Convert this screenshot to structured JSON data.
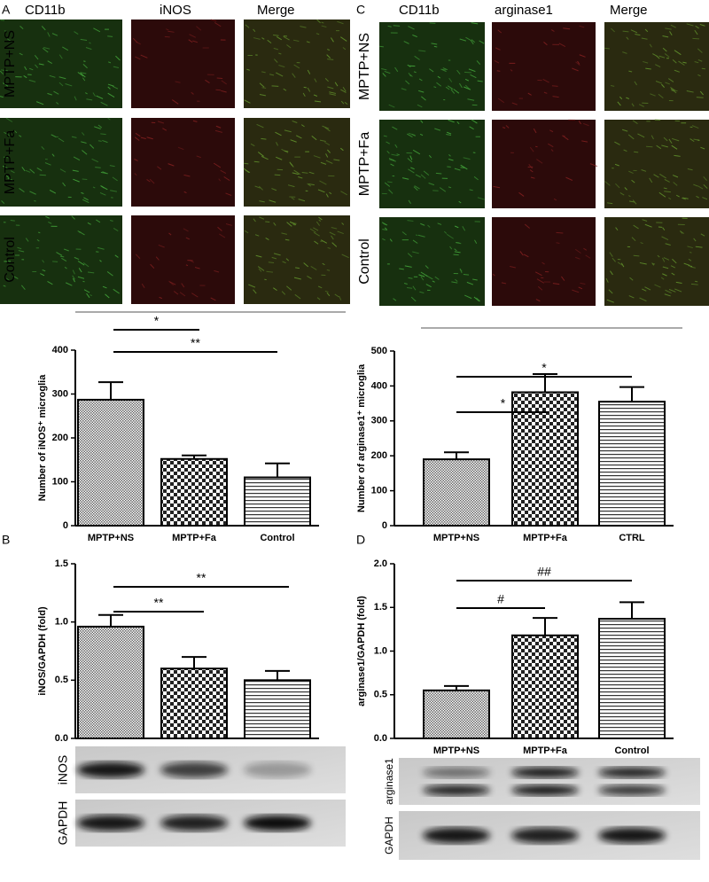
{
  "panel_labels": [
    "A",
    "B",
    "C",
    "D"
  ],
  "micrographs": [
    {
      "columns": [
        "CD11b",
        "iNOS",
        "Merge"
      ],
      "rows": [
        "MPTP+NS",
        "MPTP+Fa",
        "Control"
      ]
    },
    {
      "columns": [
        "CD11b",
        "arginase1",
        "Merge"
      ],
      "rows": [
        "MPTP+NS",
        "MPTP+Fa",
        "Control"
      ]
    }
  ],
  "blots": [
    {
      "labels": [
        "iNOS",
        "GAPDH"
      ]
    },
    {
      "labels": [
        "arginase1",
        "GAPDH"
      ]
    }
  ],
  "chart_data": [
    {
      "type": "bar",
      "y_label": "Number of iNOS⁺ microglia",
      "categories": [
        "MPTP+NS",
        "MPTP+Fa",
        "Control"
      ],
      "values": [
        287,
        152,
        110
      ],
      "errors": [
        40,
        8,
        32
      ],
      "ylim": [
        0,
        400
      ],
      "yticks": [
        0,
        100,
        200,
        300,
        400
      ],
      "annotations": [
        "*",
        "**"
      ]
    },
    {
      "type": "bar",
      "y_label": "iNOS/GAPDH (fold)",
      "categories": [
        "MPTP+NS",
        "MPTP+Fa",
        "Control"
      ],
      "values": [
        0.96,
        0.6,
        0.5
      ],
      "errors": [
        0.1,
        0.1,
        0.08
      ],
      "ylim": [
        0,
        1.5
      ],
      "yticks": [
        {
          "value": 0,
          "label": "0.0"
        },
        0.5,
        {
          "value": 1,
          "label": "1.0"
        },
        1.5
      ],
      "annotations": [
        "**",
        "**"
      ]
    },
    {
      "type": "bar",
      "y_label": "Number of arginase1⁺ microglia",
      "categories": [
        "MPTP+NS",
        "MPTP+Fa",
        "CTRL"
      ],
      "values": [
        190,
        382,
        355
      ],
      "errors": [
        20,
        52,
        42
      ],
      "ylim": [
        0,
        500
      ],
      "yticks": [
        0,
        100,
        200,
        300,
        400,
        500
      ],
      "annotations": [
        "*",
        "*"
      ]
    },
    {
      "type": "bar",
      "y_label": "arginase1/GAPDH (fold)",
      "categories": [
        "MPTP+NS",
        "MPTP+Fa",
        "Control"
      ],
      "values": [
        0.55,
        1.18,
        1.37
      ],
      "errors": [
        0.05,
        0.2,
        0.19
      ],
      "ylim": [
        0,
        2
      ],
      "yticks": [
        {
          "value": 0,
          "label": "0.0"
        },
        0.5,
        {
          "value": 1,
          "label": "1.0"
        },
        1.5,
        {
          "value": 2,
          "label": "2.0"
        }
      ],
      "annotations": [
        "#",
        "##"
      ]
    }
  ]
}
